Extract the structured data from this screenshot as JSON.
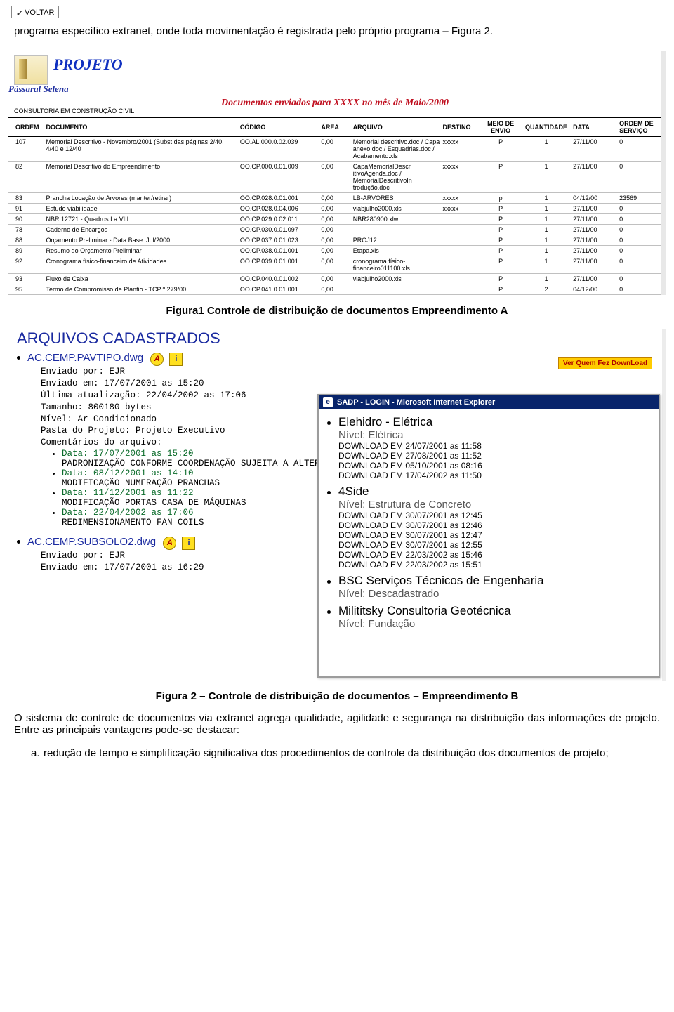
{
  "voltar": "VOLTAR",
  "para1": "programa específico extranet, onde toda movimentação é registrada pelo próprio programa – Figura 2.",
  "fig1": {
    "projeto": "PROJETO",
    "brand": "Pássaral Selena",
    "docenv": "Documentos enviados para XXXX no mês de Maio/2000",
    "consult": "CONSULTORIA EM CONSTRUÇÃO CIVIL",
    "headers": {
      "ordem": "ORDEM",
      "doc": "DOCUMENTO",
      "codigo": "CÓDIGO",
      "area": "ÁREA",
      "arquivo": "ARQUIVO",
      "destino": "DESTINO",
      "meio": "MEIO DE ENVIO",
      "qtd": "QUANTIDADE",
      "data": "DATA",
      "ordemserv": "ORDEM DE SERVIÇO"
    },
    "rows": [
      {
        "ordem": "107",
        "doc": "Memorial Descritivo - Novembro/2001 (Subst das páginas 2/40, 4/40 e 12/40",
        "codigo": "OO.AL.000.0.02.039",
        "area": "0,00",
        "arquivo": "Memorial descritivo.doc / Capa anexo.doc / Esquadrias.doc / Acabamento.xls",
        "destino": "xxxxx",
        "meio": "P",
        "qtd": "1",
        "data": "27/11/00",
        "os": "0"
      },
      {
        "ordem": "82",
        "doc": "Memorial Descritivo do Empreendimento",
        "codigo": "OO.CP.000.0.01.009",
        "area": "0,00",
        "arquivo": "CapaMemorialDescr itivoAgenda.doc / MemorialDescritivoIn trodução.doc",
        "destino": "xxxxx",
        "meio": "P",
        "qtd": "1",
        "data": "27/11/00",
        "os": "0"
      },
      {
        "ordem": "83",
        "doc": "Prancha Locação de Árvores (manter/retirar)",
        "codigo": "OO.CP.028.0.01.001",
        "area": "0,00",
        "arquivo": "LB-ARVORES",
        "destino": "xxxxx",
        "meio": "p",
        "qtd": "1",
        "data": "04/12/00",
        "os": "23569"
      },
      {
        "ordem": "91",
        "doc": "Estudo viabilidade",
        "codigo": "OO.CP.028.0.04.006",
        "area": "0,00",
        "arquivo": "viabjulho2000.xls",
        "destino": "xxxxx",
        "meio": "P",
        "qtd": "1",
        "data": "27/11/00",
        "os": "0"
      },
      {
        "ordem": "90",
        "doc": "NBR 12721 - Quadros I a VIII",
        "codigo": "OO.CP.029.0.02.011",
        "area": "0,00",
        "arquivo": "NBR280900.xlw",
        "destino": "",
        "meio": "P",
        "qtd": "1",
        "data": "27/11/00",
        "os": "0"
      },
      {
        "ordem": "78",
        "doc": "Caderno de Encargos",
        "codigo": "OO.CP.030.0.01.097",
        "area": "0,00",
        "arquivo": "",
        "destino": "",
        "meio": "P",
        "qtd": "1",
        "data": "27/11/00",
        "os": "0"
      },
      {
        "ordem": "88",
        "doc": "Orçamento Preliminar - Data Base: Jul/2000",
        "codigo": "OO.CP.037.0.01.023",
        "area": "0,00",
        "arquivo": "PROJ12",
        "destino": "",
        "meio": "P",
        "qtd": "1",
        "data": "27/11/00",
        "os": "0"
      },
      {
        "ordem": "89",
        "doc": "Resumo do Orçamento Preliminar",
        "codigo": "OO.CP.038.0.01.001",
        "area": "0,00",
        "arquivo": "Etapa.xls",
        "destino": "",
        "meio": "P",
        "qtd": "1",
        "data": "27/11/00",
        "os": "0"
      },
      {
        "ordem": "92",
        "doc": "Cronograma físico-financeiro de Atividades",
        "codigo": "OO.CP.039.0.01.001",
        "area": "0,00",
        "arquivo": "cronograma físico-financeiro011100.xls",
        "destino": "",
        "meio": "P",
        "qtd": "1",
        "data": "27/11/00",
        "os": "0"
      },
      {
        "ordem": "93",
        "doc": "Fluxo de Caixa",
        "codigo": "OO.CP.040.0.01.002",
        "area": "0,00",
        "arquivo": "viabjulho2000.xls",
        "destino": "",
        "meio": "P",
        "qtd": "1",
        "data": "27/11/00",
        "os": "0"
      },
      {
        "ordem": "95",
        "doc": "Termo de Compromisso de Plantio - TCP º 279/00",
        "codigo": "OO.CP.041.0.01.001",
        "area": "0,00",
        "arquivo": "",
        "destino": "",
        "meio": "P",
        "qtd": "2",
        "data": "04/12/00",
        "os": "0"
      }
    ]
  },
  "cap1": "Figura1 Controle de distribuição de documentos Empreendimento A",
  "fig2": {
    "title": "ARQUIVOS CADASTRADOS",
    "btn_ver": "Ver Quem Fez DownLoad",
    "file1": {
      "name": "AC.CEMP.PAVTIPO.dwg",
      "meta": [
        "Enviado por: EJR",
        "Enviado em: 17/07/2001 as 15:20",
        "Última atualização: 22/04/2002 as 17:06",
        "Tamanho: 800180 bytes",
        "Nível: Ar Condicionado",
        "Pasta do Projeto: Projeto Executivo",
        "Comentários do arquivo:"
      ],
      "comments": [
        {
          "date": "Data: 17/07/2001 as 15:20",
          "text": "PADRONIZAÇÃO CONFORME COORDENAÇÃO SUJEITA A ALTERAÇÕES"
        },
        {
          "date": "Data: 08/12/2001 as 14:10",
          "text": "MODIFICAÇÃO NUMERAÇÃO PRANCHAS"
        },
        {
          "date": "Data: 11/12/2001 as 11:22",
          "text": "MODIFICAÇÃO PORTAS CASA DE MÁQUINAS"
        },
        {
          "date": "Data: 22/04/2002 as 17:06",
          "text": "REDIMENSIONAMENTO FAN COILS"
        }
      ]
    },
    "file2": {
      "name": "AC.CEMP.SUBSOLO2.dwg",
      "meta": [
        "Enviado por: EJR",
        "Enviado em: 17/07/2001 as 16:29"
      ]
    },
    "ie": {
      "title": "SADP - LOGIN - Microsoft Internet Explorer",
      "entries": [
        {
          "name": "Elehidro - Elétrica",
          "nivel": "Nível: Elétrica",
          "dl": [
            "DOWNLOAD EM 24/07/2001 as 11:58",
            "DOWNLOAD EM 27/08/2001 as 11:52",
            "DOWNLOAD EM 05/10/2001 as 08:16",
            "DOWNLOAD EM 17/04/2002 as 11:50"
          ]
        },
        {
          "name": "4Side",
          "nivel": "Nível: Estrutura de Concreto",
          "dl": [
            "DOWNLOAD EM 30/07/2001 as 12:45",
            "DOWNLOAD EM 30/07/2001 as 12:46",
            "DOWNLOAD EM 30/07/2001 as 12:47",
            "DOWNLOAD EM 30/07/2001 as 12:55",
            "DOWNLOAD EM 22/03/2002 as 15:46",
            "DOWNLOAD EM 22/03/2002 as 15:51"
          ]
        },
        {
          "name": "BSC Serviços Técnicos de Engenharia",
          "nivel": "Nível: Descadastrado",
          "dl": []
        },
        {
          "name": "Milititsky Consultoria Geotécnica",
          "nivel": "Nível: Fundação",
          "dl": []
        }
      ]
    }
  },
  "cap2": "Figura 2 – Controle de distribuição de documentos – Empreendimento B",
  "para2": "O sistema de controle de documentos via extranet agrega qualidade, agilidade e segurança na distribuição das informações de projeto. Entre as principais vantagens pode-se destacar:",
  "item_a_label": "a.",
  "item_a": "redução de tempo e simplificação significativa dos procedimentos de controle da distribuição dos documentos de projeto;"
}
